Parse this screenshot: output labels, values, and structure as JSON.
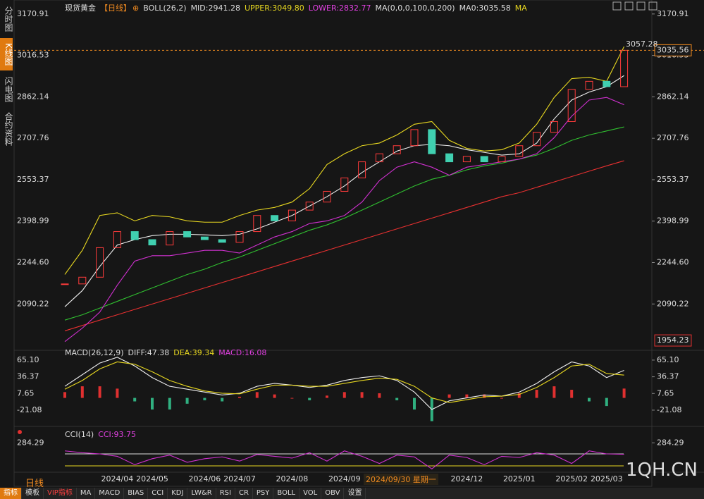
{
  "sidebar": [
    "分时图",
    "K线图",
    "闪电图",
    "合约资料"
  ],
  "main": {
    "header": {
      "name": "现货黄金",
      "period": "【日线】",
      "icon": "⊕",
      "boll": "BOLL(26,2)",
      "mid": "MID:2941.28",
      "upper": "UPPER:3049.80",
      "lower": "LOWER:2832.77",
      "ma": "MA(0,0,0,100,0,200)",
      "ma0": "MA0:3035.58",
      "ma_tail": "MA"
    },
    "ylim": [
      1936,
      3202
    ],
    "yticks": [
      3170.91,
      3016.53,
      2862.14,
      2707.76,
      2553.37,
      2398.99,
      {
        "value": 2244.6,
        "label": "2244.60"
      },
      2090.22
    ],
    "last": 3035.56,
    "high": 3057.28,
    "low": 1954.23,
    "close": [
      2165,
      2190,
      2300,
      2360,
      2330,
      2310,
      2360,
      2340,
      2330,
      2320,
      2360,
      2420,
      2400,
      2440,
      2470,
      2510,
      2560,
      2620,
      2650,
      2680,
      2740,
      2650,
      2620,
      2640,
      2620,
      2640,
      2680,
      2730,
      2770,
      2890,
      2920,
      2900,
      3035.56
    ],
    "boll_upper": [
      2200,
      2290,
      2420,
      2430,
      2400,
      2420,
      2415,
      2400,
      2395,
      2395,
      2420,
      2440,
      2450,
      2470,
      2520,
      2610,
      2650,
      2680,
      2690,
      2720,
      2760,
      2770,
      2700,
      2670,
      2660,
      2665,
      2690,
      2760,
      2860,
      2930,
      2935,
      2920,
      3049.8
    ],
    "boll_mid": [
      2080,
      2140,
      2230,
      2310,
      2330,
      2345,
      2350,
      2350,
      2348,
      2345,
      2350,
      2370,
      2395,
      2420,
      2455,
      2490,
      2530,
      2580,
      2620,
      2660,
      2680,
      2685,
      2680,
      2665,
      2655,
      2645,
      2650,
      2690,
      2780,
      2850,
      2880,
      2900,
      2941.28
    ],
    "boll_lower": [
      1950,
      2000,
      2060,
      2160,
      2250,
      2270,
      2270,
      2280,
      2290,
      2290,
      2280,
      2310,
      2340,
      2360,
      2390,
      2400,
      2420,
      2470,
      2550,
      2600,
      2620,
      2600,
      2570,
      2600,
      2610,
      2620,
      2630,
      2650,
      2710,
      2790,
      2850,
      2860,
      2832.77
    ],
    "ma100": [
      2030,
      2050,
      2075,
      2100,
      2125,
      2150,
      2175,
      2200,
      2220,
      2245,
      2265,
      2290,
      2315,
      2340,
      2365,
      2385,
      2410,
      2440,
      2470,
      2500,
      2530,
      2555,
      2570,
      2590,
      2605,
      2615,
      2630,
      2645,
      2670,
      2700,
      2720,
      2735,
      2750
    ],
    "ma200": [
      1990,
      2010,
      2030,
      2050,
      2070,
      2090,
      2110,
      2130,
      2150,
      2170,
      2190,
      2210,
      2230,
      2250,
      2270,
      2290,
      2310,
      2330,
      2350,
      2370,
      2390,
      2410,
      2430,
      2450,
      2470,
      2490,
      2505,
      2525,
      2545,
      2565,
      2585,
      2605,
      2624
    ]
  },
  "macd": {
    "header": {
      "name": "MACD(26,12,9)",
      "diff": "DIFF:47.38",
      "dea": "DEA:39.34",
      "macd": "MACD:16.08"
    },
    "ylim": [
      -43,
      82
    ],
    "yticks": [
      {
        "value": 65.1,
        "label": "65.10"
      },
      36.37,
      7.65,
      -21.08
    ],
    "diff": [
      20,
      40,
      60,
      70,
      55,
      35,
      20,
      15,
      10,
      5,
      8,
      20,
      25,
      22,
      18,
      22,
      30,
      35,
      38,
      30,
      10,
      -20,
      -5,
      0,
      5,
      3,
      10,
      25,
      45,
      62,
      55,
      35,
      47.38
    ],
    "dea": [
      15,
      30,
      50,
      62,
      58,
      45,
      30,
      20,
      12,
      8,
      7,
      15,
      22,
      22,
      20,
      20,
      25,
      30,
      34,
      32,
      20,
      0,
      -8,
      -3,
      2,
      3,
      6,
      18,
      35,
      55,
      58,
      42,
      39.34
    ],
    "hist": [
      10,
      20,
      20,
      16,
      -6,
      -20,
      -20,
      -10,
      -4,
      -6,
      2,
      10,
      6,
      0,
      -4,
      4,
      10,
      10,
      8,
      -4,
      -20,
      -40,
      6,
      6,
      6,
      0,
      8,
      14,
      20,
      14,
      -6,
      -14,
      16.08
    ]
  },
  "cci": {
    "header": {
      "name": "CCI(14)",
      "cci": "CCI:93.75"
    },
    "ylim": [
      -182,
      535
    ],
    "yticks": [
      284.29
    ],
    "ref_lines": [
      100,
      -100
    ],
    "values": [
      150,
      120,
      100,
      60,
      -80,
      20,
      80,
      -40,
      20,
      50,
      -20,
      90,
      60,
      30,
      120,
      -20,
      150,
      60,
      -60,
      80,
      50,
      -150,
      80,
      40,
      -80,
      60,
      40,
      120,
      80,
      -60,
      150,
      100,
      93.75
    ]
  },
  "categories": [
    null,
    null,
    null,
    "2024/04",
    null,
    "2024/05",
    null,
    null,
    "2024/06",
    null,
    "2024/07",
    null,
    null,
    "2024/08",
    null,
    null,
    "2024/09",
    null,
    null,
    null,
    null,
    null,
    null,
    "2024/12",
    null,
    null,
    "2025/01",
    null,
    null,
    "2025/02",
    null,
    "2025/03",
    null
  ],
  "period_label": "日线",
  "cursor_date": "2024/09/30 星期一",
  "watermark": "1QH.CN",
  "toolbar": [
    "指标",
    "模板",
    "VIP指标",
    "MA",
    "MACD",
    "BIAS",
    "CCI",
    "KDJ",
    "LW&R",
    "RSI",
    "CR",
    "PSY",
    "BOLL",
    "VOL",
    "OBV",
    "设置"
  ]
}
